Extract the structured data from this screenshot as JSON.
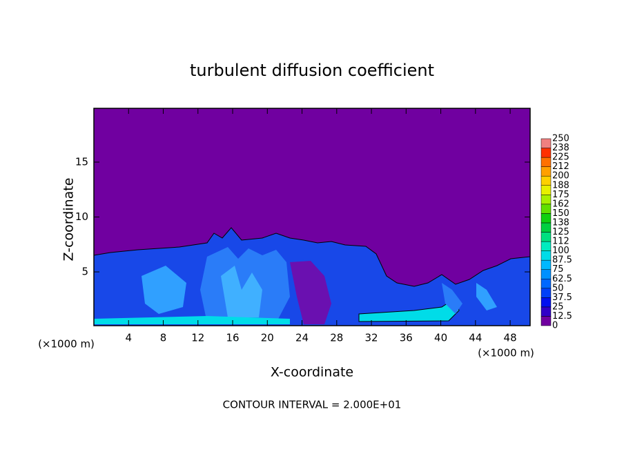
{
  "chart_data": {
    "type": "contour",
    "title": "turbulent diffusion coefficient",
    "x_label": "X-coordinate",
    "y_label": "Z-coordinate",
    "x_unit_left": "(×1000 m)",
    "x_unit_right": "(×1000 m)",
    "footer": "CONTOUR INTERVAL = 2.000E+01",
    "xlim": [
      0,
      50.3
    ],
    "xticks": [
      4,
      8,
      12,
      16,
      20,
      24,
      28,
      32,
      36,
      40,
      44,
      48
    ],
    "ylim": [
      0.1,
      19.9
    ],
    "yticks": [
      5,
      10,
      15
    ],
    "colorbar": {
      "levels": [
        0,
        12.5,
        25,
        37.5,
        50,
        62.5,
        75,
        87.5,
        100,
        112,
        125,
        138,
        150,
        162,
        175,
        188,
        200,
        212,
        225,
        238,
        250
      ],
      "colors": [
        "#7000a0",
        "#3000c8",
        "#0010f0",
        "#0040f8",
        "#0068ff",
        "#0090ff",
        "#00b8ff",
        "#00dce8",
        "#00ecc0",
        "#00e080",
        "#00d040",
        "#10d010",
        "#60e000",
        "#a8f000",
        "#e8f000",
        "#ffd000",
        "#ffa000",
        "#ff7000",
        "#ff3000",
        "#f08080"
      ]
    }
  }
}
